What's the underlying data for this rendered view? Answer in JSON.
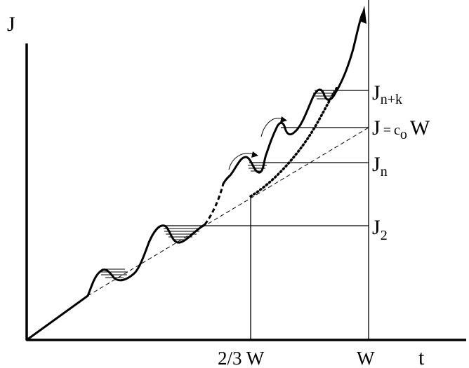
{
  "axes": {
    "y_label": "J",
    "x_label": "t"
  },
  "levels": {
    "jnk_main": "J",
    "jnk_sub": "n+k",
    "jcw_main": "J",
    "jcw_eq": "=",
    "jcw_c": "c",
    "jcw_sub": "o",
    "jcw_w": "W",
    "jn_main": "J",
    "jn_sub": "n",
    "j2_main": "J",
    "j2_sub": "2"
  },
  "ticks": {
    "two_thirds_w": "2/3 W",
    "w": "W"
  },
  "colors": {
    "ink": "#000000",
    "background": "#ffffff"
  }
}
